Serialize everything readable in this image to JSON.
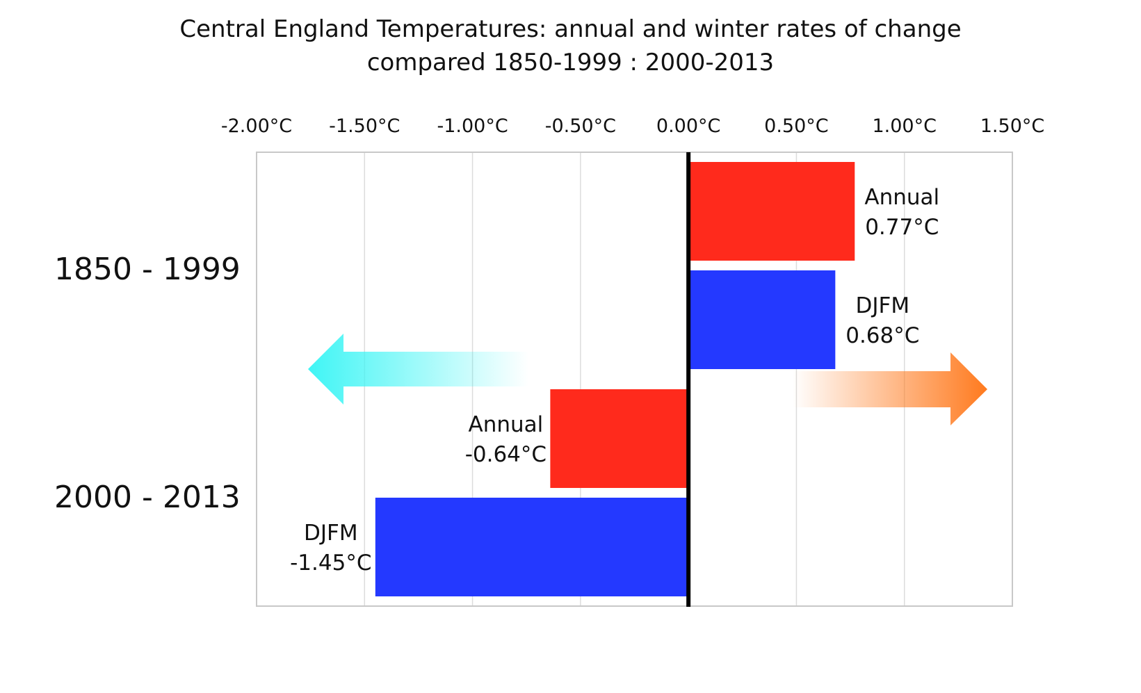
{
  "chart_data": {
    "type": "bar",
    "orientation": "horizontal",
    "title": "Central England Temperatures:  annual and winter rates of change",
    "subtitle": "compared    1850-1999  :  2000-2013",
    "groups": [
      "1850 - 1999",
      "2000 - 2013"
    ],
    "series": [
      {
        "name": "Annual",
        "color": "#ff2a1c",
        "values": [
          0.77,
          -0.64
        ],
        "labels": [
          "0.77°C",
          "-0.64°C"
        ]
      },
      {
        "name": "DJFM",
        "color": "#2439ff",
        "values": [
          0.68,
          -1.45
        ],
        "labels": [
          "0.68°C",
          "-1.45°C"
        ]
      }
    ],
    "xlim": [
      -2.0,
      1.5
    ],
    "xticks": [
      -2.0,
      -1.5,
      -1.0,
      -0.5,
      0.0,
      0.5,
      1.0,
      1.5
    ],
    "xtick_labels": [
      "-2.00°C",
      "-1.50°C",
      "-1.00°C",
      "-0.50°C",
      "0.00°C",
      "0.50°C",
      "1.00°C",
      "1.50°C"
    ],
    "xaxis_position": "top",
    "grid": true,
    "annotations": [
      {
        "type": "arrow",
        "direction": "left",
        "color": "#3ff5f5"
      },
      {
        "type": "arrow",
        "direction": "right",
        "color": "#ff7a1e"
      }
    ]
  }
}
